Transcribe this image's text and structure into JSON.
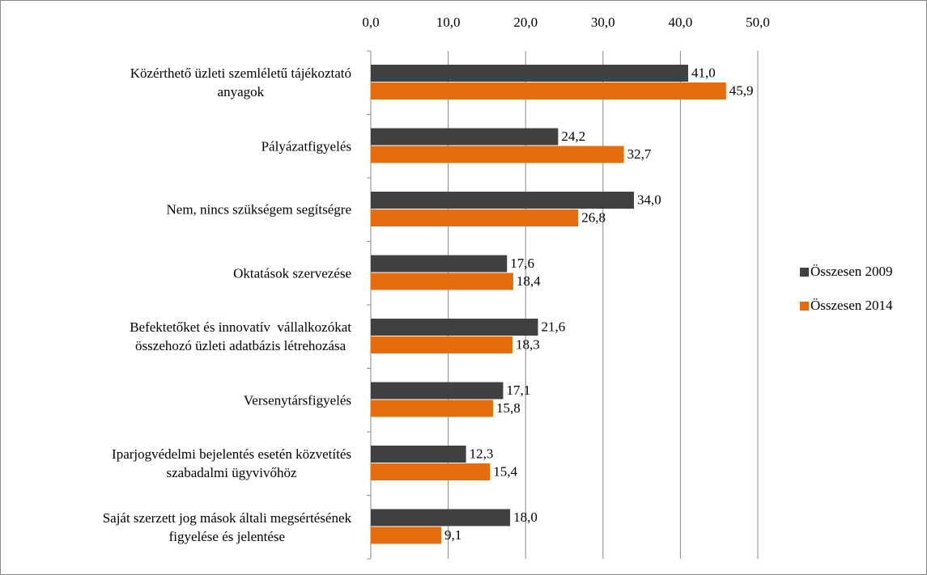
{
  "chart_data": {
    "type": "bar",
    "orientation": "horizontal",
    "categories": [
      "Közérthető üzleti szemléletű tájékoztató\nanyagok",
      "Pályázatfigyelés",
      "Nem, nincs szükségem segítségre",
      "Oktatások szervezése",
      "Befektetőket és innovatív  vállalkozókat\nösszehozó üzleti adatbázis létrehozása",
      "Versenytársfigyelés",
      "Iparjogvédelmi bejelentés esetén közvetítés\nszabadalmi ügyvivőhöz",
      "Saját szerzett jog mások általi megsértésének\nfigyelése és jelentése"
    ],
    "series": [
      {
        "name": "Összesen 2009",
        "color": "#404040",
        "values": [
          41.0,
          24.2,
          34.0,
          17.6,
          21.6,
          17.1,
          12.3,
          18.0
        ],
        "value_labels": [
          "41,0",
          "24,2",
          "34,0",
          "17,6",
          "21,6",
          "17,1",
          "12,3",
          "18,0"
        ]
      },
      {
        "name": "Összesen 2014",
        "color": "#e46c0a",
        "values": [
          45.9,
          32.7,
          26.8,
          18.4,
          18.3,
          15.8,
          15.4,
          9.1
        ],
        "value_labels": [
          "45,9",
          "32,7",
          "26,8",
          "18,4",
          "18,3",
          "15,8",
          "15,4",
          "9,1"
        ]
      }
    ],
    "xlim": [
      0,
      50
    ],
    "xticks": [
      {
        "value": 0,
        "label": "0,0"
      },
      {
        "value": 10,
        "label": "10,0"
      },
      {
        "value": 20,
        "label": "20,0"
      },
      {
        "value": 30,
        "label": "30,0"
      },
      {
        "value": 40,
        "label": "40,0"
      },
      {
        "value": 50,
        "label": "50,0"
      }
    ],
    "grid": true,
    "legend": "right"
  }
}
